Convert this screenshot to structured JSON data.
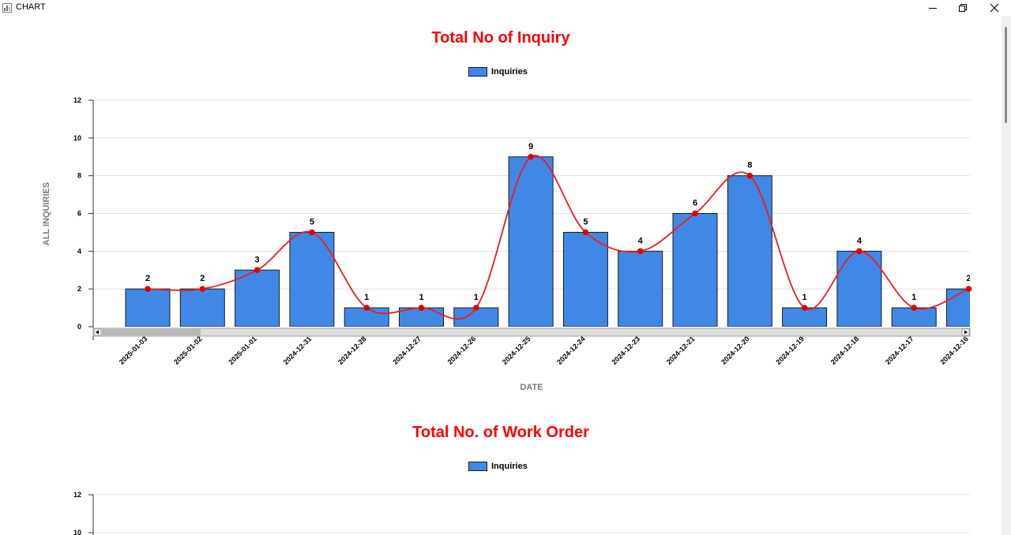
{
  "window": {
    "title": "CHART"
  },
  "colors": {
    "bar_fill": "#4188e6",
    "bar_stroke": "#1a1a1a",
    "line": "#e81e1e",
    "marker": "#e00000",
    "title": "#ff0000",
    "axis_title": "#7a7a7a"
  },
  "chart_data": [
    {
      "type": "bar",
      "title": "Total No of Inquiry",
      "xlabel": "DATE",
      "ylabel": "ALL INQUIRIES",
      "ylim": [
        0,
        12
      ],
      "yticks": [
        0,
        2,
        4,
        6,
        8,
        10,
        12
      ],
      "grid": true,
      "legend_position": "top-center",
      "categories": [
        "2025-01-03",
        "2025-01-02",
        "2025-01-01",
        "2024-12-31",
        "2024-12-28",
        "2024-12-27",
        "2024-12-26",
        "2024-12-25",
        "2024-12-24",
        "2024-12-23",
        "2024-12-21",
        "2024-12-20",
        "2024-12-19",
        "2024-12-18",
        "2024-12-17",
        "2024-12-16"
      ],
      "series": [
        {
          "name": "Inquiries",
          "values": [
            2,
            2,
            3,
            5,
            1,
            1,
            1,
            9,
            5,
            4,
            6,
            8,
            1,
            4,
            1,
            2
          ]
        }
      ],
      "overlay": "smooth line with markers through the same values",
      "horizontal_scrollbar": true
    },
    {
      "type": "bar",
      "title": "Total No. of Work Order",
      "legend_position": "top-center",
      "yticks_visible": [
        12,
        10
      ],
      "series": [
        {
          "name": "Inquiries",
          "values": []
        }
      ]
    }
  ]
}
